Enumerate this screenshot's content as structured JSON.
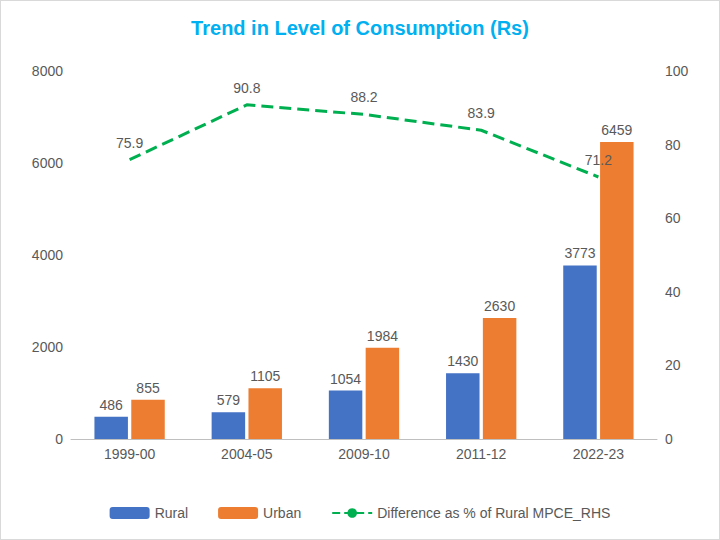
{
  "chart_data": {
    "type": "bar",
    "title": "Trend in Level of Consumption (Rs)",
    "categories": [
      "1999-00",
      "2004-05",
      "2009-10",
      "2011-12",
      "2022-23"
    ],
    "series": [
      {
        "name": "Rural",
        "type": "bar",
        "color": "#4472c4",
        "values": [
          486,
          579,
          1054,
          1430,
          3773
        ]
      },
      {
        "name": "Urban",
        "type": "bar",
        "color": "#ed7d31",
        "values": [
          855,
          1105,
          1984,
          2630,
          6459
        ]
      },
      {
        "name": "Difference as % of Rural MPCE_RHS",
        "type": "line",
        "axis": "y2",
        "color": "#00b050",
        "line_style": "dashed",
        "marker": "none",
        "values": [
          75.9,
          90.8,
          88.2,
          83.9,
          71.2
        ]
      }
    ],
    "ylim": [
      0,
      8000
    ],
    "yticks": [
      0,
      2000,
      4000,
      6000,
      8000
    ],
    "y2lim": [
      0,
      100
    ],
    "y2ticks": [
      0,
      20,
      40,
      60,
      80,
      100
    ],
    "grid": false,
    "legend": "bottom",
    "data_labels": true
  }
}
